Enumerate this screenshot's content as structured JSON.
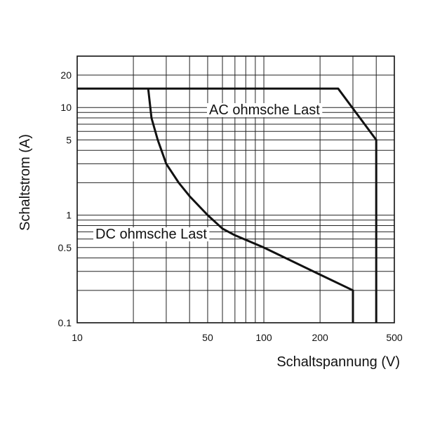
{
  "chart_data": {
    "type": "line",
    "xlabel": "Schaltspannung (V)",
    "ylabel": "Schaltstrom (A)",
    "xscale": "log",
    "yscale": "log",
    "xlim": [
      10,
      500
    ],
    "ylim": [
      0.1,
      30
    ],
    "grid": true,
    "xticks": [
      {
        "value": 10,
        "label": "10"
      },
      {
        "value": 50,
        "label": "50"
      },
      {
        "value": 100,
        "label": "100"
      },
      {
        "value": 200,
        "label": "200"
      },
      {
        "value": 500,
        "label": "500"
      }
    ],
    "yticks": [
      {
        "value": 0.1,
        "label": "0.1"
      },
      {
        "value": 0.5,
        "label": "0.5"
      },
      {
        "value": 1,
        "label": "1"
      },
      {
        "value": 5,
        "label": "5"
      },
      {
        "value": 10,
        "label": "10"
      },
      {
        "value": 20,
        "label": "20"
      }
    ],
    "series": [
      {
        "name": "AC ohmsche Last",
        "x": [
          10,
          250,
          400,
          400
        ],
        "y": [
          15,
          15,
          5,
          0.1
        ]
      },
      {
        "name": "DC ohmsche Last",
        "x": [
          24,
          25,
          27,
          30,
          35,
          40,
          50,
          60,
          70,
          100,
          200,
          300,
          300
        ],
        "y": [
          15,
          8,
          5,
          3,
          2,
          1.5,
          1,
          0.75,
          0.65,
          0.5,
          0.28,
          0.2,
          0.1
        ]
      }
    ],
    "annotations": [
      {
        "text": "AC ohmsche Last",
        "series": 0
      },
      {
        "text": "DC ohmsche Last",
        "series": 1
      }
    ]
  }
}
